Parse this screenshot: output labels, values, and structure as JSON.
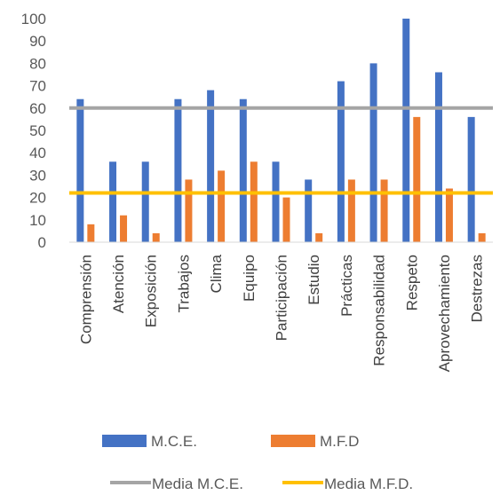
{
  "chart_data": {
    "type": "bar",
    "title": "",
    "xlabel": "",
    "ylabel": "",
    "ylim": [
      0,
      100
    ],
    "yticks": [
      0,
      10,
      20,
      30,
      40,
      50,
      60,
      70,
      80,
      90,
      100
    ],
    "grid": false,
    "legend_position": "bottom",
    "categories": [
      "Comprensión",
      "Atención",
      "Exposición",
      "Trabajos",
      "Clima",
      "Equipo",
      "Participación",
      "Estudio",
      "Prácticas",
      "Responsabilidad",
      "Respeto",
      "Aprovechamiento",
      "Destrezas"
    ],
    "series": [
      {
        "name": "M.C.E.",
        "color": "#4472C4",
        "values": [
          64,
          36,
          36,
          64,
          68,
          64,
          36,
          28,
          72,
          80,
          100,
          76,
          56
        ]
      },
      {
        "name": "M.F.D",
        "color": "#ED7D31",
        "values": [
          8,
          12,
          4,
          28,
          32,
          36,
          20,
          4,
          28,
          28,
          56,
          24,
          4
        ]
      }
    ],
    "reference_lines": [
      {
        "name": "Media M.C.E.",
        "color": "#A5A5A5",
        "value": 60
      },
      {
        "name": "Media M.F.D.",
        "color": "#FFC000",
        "value": 22
      }
    ]
  }
}
